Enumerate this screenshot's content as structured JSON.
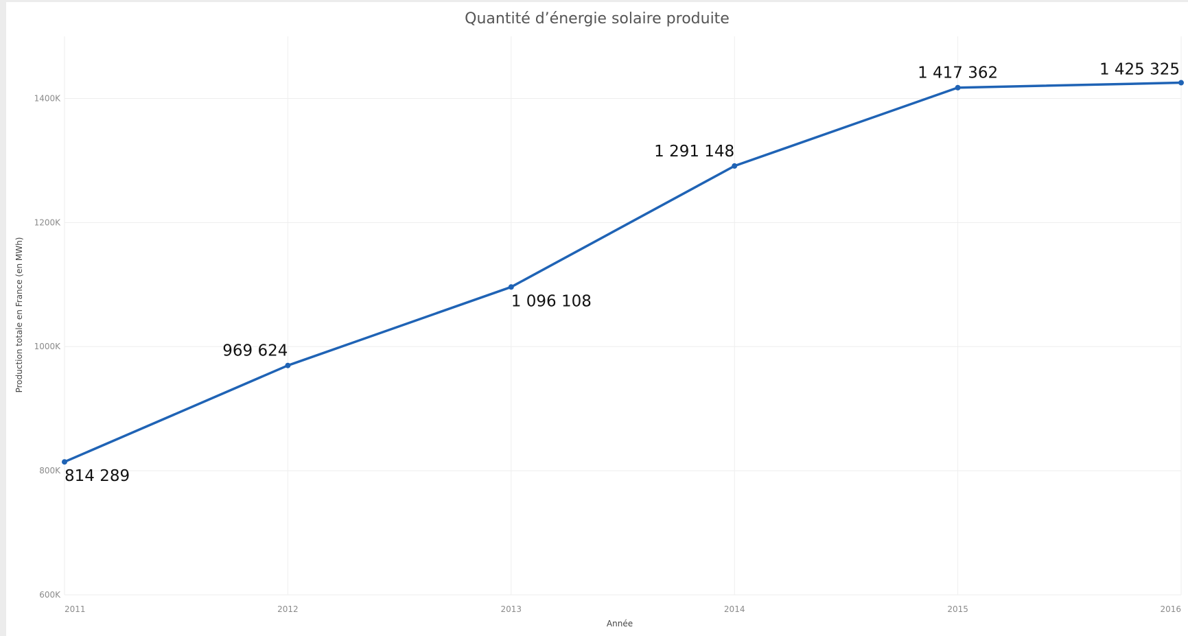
{
  "chart_data": {
    "type": "line",
    "title": "Quantité d’énergie solaire produite",
    "xlabel": "Année",
    "ylabel": "Production totale en France (en MWh)",
    "x": [
      2011,
      2012,
      2013,
      2014,
      2015,
      2016
    ],
    "x_tick_labels": [
      "2011",
      "2012",
      "2013",
      "2014",
      "2015",
      "2016"
    ],
    "y_tick_values": [
      600000,
      800000,
      1000000,
      1200000,
      1400000
    ],
    "y_tick_labels": [
      "600K",
      "800K",
      "1000K",
      "1200K",
      "1400K"
    ],
    "ylim": [
      600000,
      1500000
    ],
    "grid": true,
    "legend": "none",
    "series": [
      {
        "values": [
          814289,
          969624,
          1096108,
          1291148,
          1417362,
          1425325
        ],
        "labels": [
          "814 289",
          "969 624",
          "1 096 108",
          "1 291 148",
          "1 417 362",
          "1 425 325"
        ],
        "color": "#1f63b5"
      }
    ]
  }
}
